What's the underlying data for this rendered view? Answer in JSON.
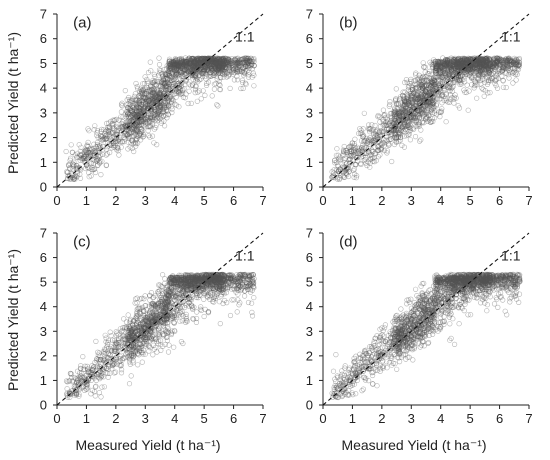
{
  "figure": {
    "ylabel": "Predicted Yield (t ha⁻¹)",
    "xlabel": "Measured Yield (t ha⁻¹)"
  },
  "chart_data": [
    {
      "type": "scatter",
      "panel": "(a)",
      "reference_line": "1:1",
      "xlim": [
        0,
        7
      ],
      "ylim": [
        0,
        7
      ],
      "xticks": [
        "0",
        "1",
        "2",
        "3",
        "4",
        "5",
        "6",
        "7"
      ],
      "yticks": [
        "0",
        "1",
        "2",
        "3",
        "4",
        "5",
        "6",
        "7"
      ],
      "plateau": 5.1,
      "trend_note": "dense cloud along 1:1 up to ~5 t ha-1, predictions cap near 5.1",
      "marker_color": "#555555"
    },
    {
      "type": "scatter",
      "panel": "(b)",
      "reference_line": "1:1",
      "xlim": [
        0,
        7
      ],
      "ylim": [
        0,
        7
      ],
      "xticks": [
        "0",
        "1",
        "2",
        "3",
        "4",
        "5",
        "6",
        "7"
      ],
      "yticks": [
        "0",
        "1",
        "2",
        "3",
        "4",
        "5",
        "6",
        "7"
      ],
      "plateau": 5.1,
      "trend_note": "dense cloud along 1:1 up to ~5 t ha-1, predictions cap near 5.1",
      "marker_color": "#555555"
    },
    {
      "type": "scatter",
      "panel": "(c)",
      "reference_line": "1:1",
      "xlim": [
        0,
        7
      ],
      "ylim": [
        0,
        7
      ],
      "xticks": [
        "0",
        "1",
        "2",
        "3",
        "4",
        "5",
        "6",
        "7"
      ],
      "yticks": [
        "0",
        "1",
        "2",
        "3",
        "4",
        "5",
        "6",
        "7"
      ],
      "plateau": 5.2,
      "trend_note": "dense cloud along 1:1 up to ~5 t ha-1, predictions cap near 5.2",
      "marker_color": "#555555"
    },
    {
      "type": "scatter",
      "panel": "(d)",
      "reference_line": "1:1",
      "xlim": [
        0,
        7
      ],
      "ylim": [
        0,
        7
      ],
      "xticks": [
        "0",
        "1",
        "2",
        "3",
        "4",
        "5",
        "6",
        "7"
      ],
      "yticks": [
        "0",
        "1",
        "2",
        "3",
        "4",
        "5",
        "6",
        "7"
      ],
      "plateau": 5.2,
      "trend_note": "dense cloud along 1:1 up to ~5 t ha-1, predictions cap near 5.2",
      "marker_color": "#555555"
    }
  ]
}
